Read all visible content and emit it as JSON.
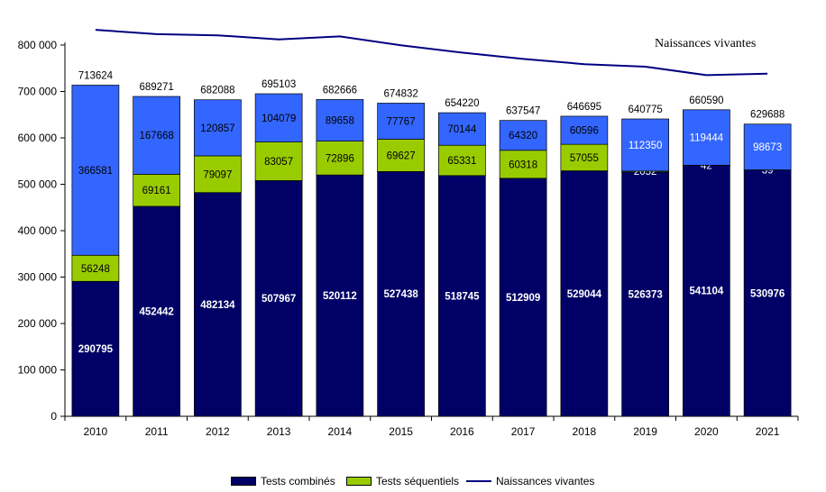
{
  "chart_data": {
    "type": "bar",
    "stacked": true,
    "categories": [
      "2010",
      "2011",
      "2012",
      "2013",
      "2014",
      "2015",
      "2016",
      "2017",
      "2018",
      "2019",
      "2020",
      "2021"
    ],
    "series": [
      {
        "name": "Tests combinés",
        "values": [
          290795,
          452442,
          482134,
          507967,
          520112,
          527438,
          518745,
          512909,
          529044,
          526373,
          541104,
          530976
        ]
      },
      {
        "name": "Tests séquentiels",
        "values": [
          56248,
          69161,
          79097,
          83057,
          72896,
          69627,
          65331,
          60318,
          57055,
          2052,
          42,
          39
        ]
      },
      {
        "values": [
          366581,
          167668,
          120857,
          104079,
          89658,
          77767,
          70144,
          64320,
          60596,
          112350,
          119444,
          98673
        ]
      }
    ],
    "totals": [
      713624,
      689271,
      682088,
      695103,
      682666,
      674832,
      654220,
      637547,
      646695,
      640775,
      660590,
      629688
    ],
    "line": {
      "name": "Naissances vivantes",
      "values": [
        832800,
        823400,
        821000,
        812000,
        818600,
        799600,
        783600,
        770000,
        758900,
        753400,
        735200,
        738200
      ]
    },
    "annotation": "Naissances vivantes",
    "y_ticks": [
      "0",
      "100 000",
      "200 000",
      "300 000",
      "400 000",
      "500 000",
      "600 000",
      "700 000",
      "800 000"
    ],
    "ylim": [
      0,
      800000
    ],
    "xlabel": "",
    "ylabel": "",
    "legend_position": "bottom",
    "grid": false,
    "colors": {
      "combined": "#000066",
      "sequential": "#99CC00",
      "other": "#3366FF",
      "line": "#000080",
      "sequential_label": "#000000",
      "combined_label": "#ffffff",
      "other_label_dark": "#000000",
      "other_label_light": "#ffffff"
    }
  },
  "legend": {
    "items": [
      {
        "label": "Tests combinés",
        "kind": "box",
        "color": "#000066"
      },
      {
        "label": "Tests séquentiels",
        "kind": "box",
        "color": "#99CC00"
      },
      {
        "label": "Naissances vivantes",
        "kind": "line",
        "color": "#000080"
      }
    ]
  }
}
